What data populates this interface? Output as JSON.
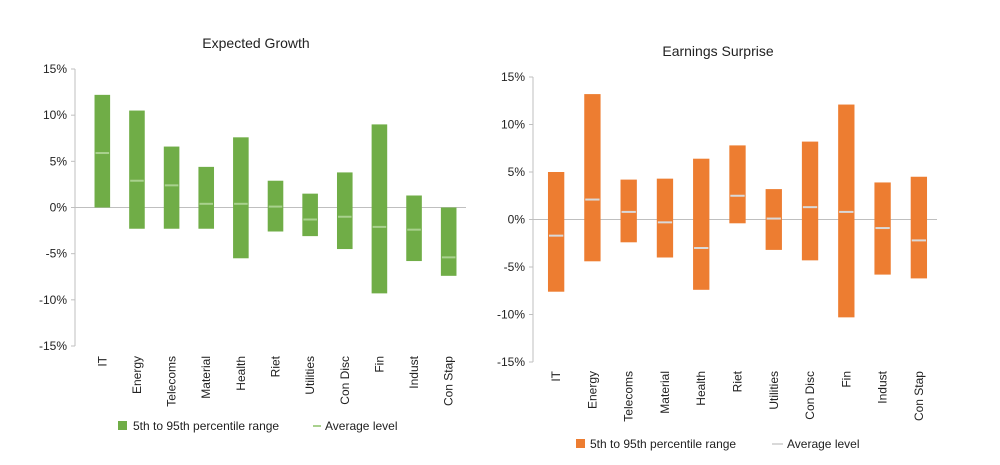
{
  "chart_data": [
    {
      "type": "bar",
      "subtype": "floating-range",
      "title": "Expected Growth",
      "categories": [
        "IT",
        "Energy",
        "Telecoms",
        "Material",
        "Health",
        "Riet",
        "Utilities",
        "Con Disc",
        "Fin",
        "Indust",
        "Con Stap"
      ],
      "series": [
        {
          "name": "5th to 95th percentile range",
          "low": [
            0.0,
            -2.3,
            -2.3,
            -2.3,
            -5.5,
            -2.6,
            -3.1,
            -4.5,
            -9.3,
            -5.8,
            -7.4
          ],
          "high": [
            12.2,
            10.5,
            6.6,
            4.4,
            7.6,
            2.9,
            1.5,
            3.8,
            9.0,
            1.3,
            0.0
          ]
        },
        {
          "name": "Average level",
          "values": [
            5.9,
            2.9,
            2.4,
            0.4,
            0.4,
            0.1,
            -1.3,
            -1.0,
            -2.1,
            -2.4,
            -5.4
          ]
        }
      ],
      "y_ticks": [
        "15%",
        "10%",
        "5%",
        "0%",
        "-5%",
        "-10%",
        "-15%"
      ],
      "ylim": [
        -15,
        15
      ],
      "grid": false,
      "legend": "bottom",
      "colors": {
        "range": "#70AD47",
        "average": "#A9D18E"
      }
    },
    {
      "type": "bar",
      "subtype": "floating-range",
      "title": "Earnings Surprise",
      "categories": [
        "IT",
        "Energy",
        "Telecoms",
        "Material",
        "Health",
        "Riet",
        "Utilities",
        "Con Disc",
        "Fin",
        "Indust",
        "Con Stap"
      ],
      "series": [
        {
          "name": "5th to 95th percentile range",
          "low": [
            -7.6,
            -4.4,
            -2.4,
            -4.0,
            -7.4,
            -0.4,
            -3.2,
            -4.3,
            -10.3,
            -5.8,
            -6.2
          ],
          "high": [
            5.0,
            13.2,
            4.2,
            4.3,
            6.4,
            7.8,
            3.2,
            8.2,
            12.1,
            3.9,
            4.5
          ]
        },
        {
          "name": "Average level",
          "values": [
            -1.7,
            2.1,
            0.8,
            -0.3,
            -3.0,
            2.5,
            0.1,
            1.3,
            0.8,
            -0.9,
            -2.2
          ]
        }
      ],
      "y_ticks": [
        "15%",
        "10%",
        "5%",
        "0%",
        "-5%",
        "-10%",
        "-15%"
      ],
      "ylim": [
        -15,
        15
      ],
      "grid": false,
      "legend": "bottom",
      "colors": {
        "range": "#ED7D31",
        "average": "#D9D9D9"
      }
    }
  ]
}
